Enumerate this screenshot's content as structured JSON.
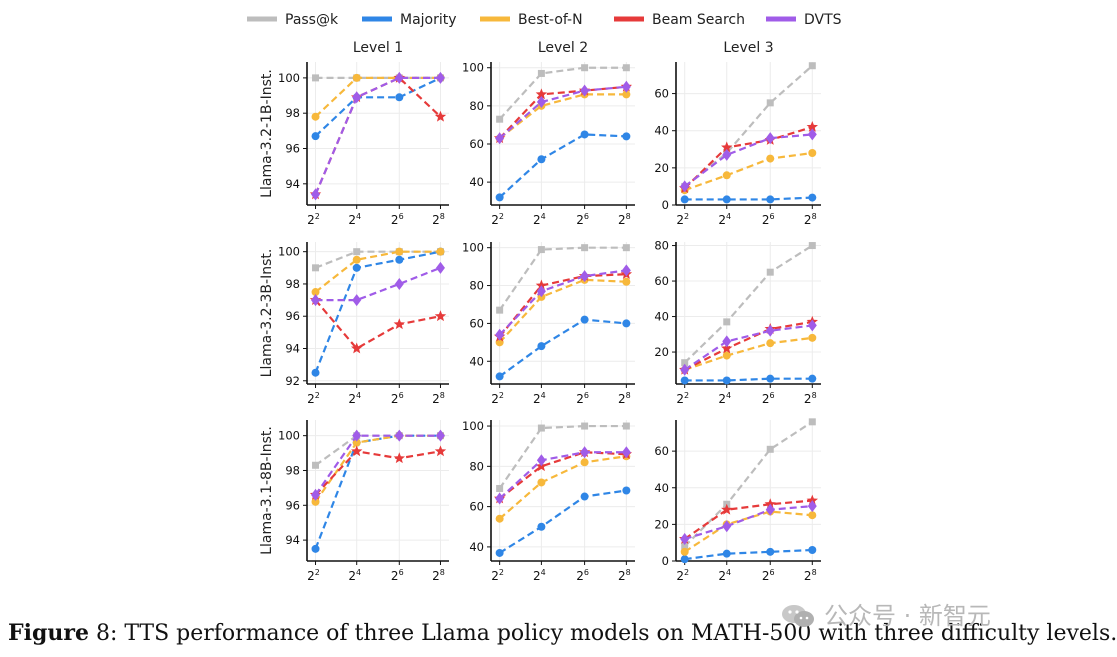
{
  "colors": {
    "Pass@k": "#bdbdbd",
    "Majority": "#2f86e6",
    "Best-of-N": "#f7b83b",
    "Beam Search": "#e63a3a",
    "DVTS": "#a05ce8"
  },
  "legend": [
    "Pass@k",
    "Majority",
    "Best-of-N",
    "Beam Search",
    "DVTS"
  ],
  "column_titles": [
    "Level 1",
    "Level 2",
    "Level 3"
  ],
  "row_labels": [
    "Llama-3.2-1B-Inst.",
    "Llama-3.2-3B-Inst.",
    "Llama-3.1-8B-Inst."
  ],
  "caption": {
    "bold": "Figure",
    "rest": " 8: TTS performance of three Llama policy models on MATH-500 with three difficulty levels."
  },
  "watermark": "公众号 · 新智元",
  "chart_data": [
    {
      "type": "line",
      "row": 0,
      "col": 0,
      "x": [
        "2^2",
        "2^4",
        "2^6",
        "2^8"
      ],
      "ylim": [
        92.8,
        100.9
      ],
      "yticks": [
        94,
        96,
        98,
        100
      ],
      "series": [
        {
          "name": "Pass@k",
          "values": [
            100,
            100,
            100,
            100
          ]
        },
        {
          "name": "Majority",
          "values": [
            96.7,
            98.9,
            98.9,
            100
          ]
        },
        {
          "name": "Best-of-N",
          "values": [
            97.8,
            100,
            100,
            100
          ]
        },
        {
          "name": "Beam Search",
          "values": [
            93.4,
            98.9,
            100,
            97.8
          ]
        },
        {
          "name": "DVTS",
          "values": [
            93.4,
            98.9,
            100,
            100
          ]
        }
      ]
    },
    {
      "type": "line",
      "row": 0,
      "col": 1,
      "x": [
        "2^2",
        "2^4",
        "2^6",
        "2^8"
      ],
      "ylim": [
        28,
        103
      ],
      "yticks": [
        40,
        60,
        80,
        100
      ],
      "series": [
        {
          "name": "Pass@k",
          "values": [
            73,
            97,
            100,
            100
          ]
        },
        {
          "name": "Majority",
          "values": [
            32,
            52,
            65,
            64
          ]
        },
        {
          "name": "Best-of-N",
          "values": [
            63,
            80,
            86,
            86
          ]
        },
        {
          "name": "Beam Search",
          "values": [
            63,
            86,
            88,
            90
          ]
        },
        {
          "name": "DVTS",
          "values": [
            63,
            82,
            88,
            90
          ]
        }
      ]
    },
    {
      "type": "line",
      "row": 0,
      "col": 2,
      "x": [
        "2^2",
        "2^4",
        "2^6",
        "2^8"
      ],
      "ylim": [
        0,
        77
      ],
      "yticks": [
        0,
        20,
        40,
        60
      ],
      "series": [
        {
          "name": "Pass@k",
          "values": [
            10,
            28,
            55,
            75
          ]
        },
        {
          "name": "Majority",
          "values": [
            3,
            3,
            3,
            4
          ]
        },
        {
          "name": "Best-of-N",
          "values": [
            8,
            16,
            25,
            28
          ]
        },
        {
          "name": "Beam Search",
          "values": [
            9,
            31,
            35,
            42
          ]
        },
        {
          "name": "DVTS",
          "values": [
            10,
            27,
            36,
            38
          ]
        }
      ]
    },
    {
      "type": "line",
      "row": 1,
      "col": 0,
      "x": [
        "2^2",
        "2^4",
        "2^6",
        "2^8"
      ],
      "ylim": [
        91.8,
        100.6
      ],
      "yticks": [
        92,
        94,
        96,
        98,
        100
      ],
      "series": [
        {
          "name": "Pass@k",
          "values": [
            99,
            100,
            100,
            100
          ]
        },
        {
          "name": "Majority",
          "values": [
            92.5,
            99,
            99.5,
            100
          ]
        },
        {
          "name": "Best-of-N",
          "values": [
            97.5,
            99.5,
            100,
            100
          ]
        },
        {
          "name": "Beam Search",
          "values": [
            97,
            94,
            95.5,
            96
          ]
        },
        {
          "name": "DVTS",
          "values": [
            97,
            97,
            98,
            99
          ]
        }
      ]
    },
    {
      "type": "line",
      "row": 1,
      "col": 1,
      "x": [
        "2^2",
        "2^4",
        "2^6",
        "2^8"
      ],
      "ylim": [
        28,
        103
      ],
      "yticks": [
        40,
        60,
        80,
        100
      ],
      "series": [
        {
          "name": "Pass@k",
          "values": [
            67,
            99,
            100,
            100
          ]
        },
        {
          "name": "Majority",
          "values": [
            32,
            48,
            62,
            60
          ]
        },
        {
          "name": "Best-of-N",
          "values": [
            50,
            74,
            83,
            82
          ]
        },
        {
          "name": "Beam Search",
          "values": [
            53,
            80,
            85,
            86
          ]
        },
        {
          "name": "DVTS",
          "values": [
            54,
            77,
            85,
            88
          ]
        }
      ]
    },
    {
      "type": "line",
      "row": 1,
      "col": 2,
      "x": [
        "2^2",
        "2^4",
        "2^6",
        "2^8"
      ],
      "ylim": [
        2,
        82
      ],
      "yticks": [
        20,
        40,
        60,
        80
      ],
      "series": [
        {
          "name": "Pass@k",
          "values": [
            14,
            37,
            65,
            80
          ]
        },
        {
          "name": "Majority",
          "values": [
            4,
            4,
            5,
            5
          ]
        },
        {
          "name": "Best-of-N",
          "values": [
            10,
            18,
            25,
            28
          ]
        },
        {
          "name": "Beam Search",
          "values": [
            10,
            22,
            33,
            37
          ]
        },
        {
          "name": "DVTS",
          "values": [
            10,
            26,
            32,
            35
          ]
        }
      ]
    },
    {
      "type": "line",
      "row": 2,
      "col": 0,
      "x": [
        "2^2",
        "2^4",
        "2^6",
        "2^8"
      ],
      "ylim": [
        92.8,
        100.9
      ],
      "yticks": [
        94,
        96,
        98,
        100
      ],
      "series": [
        {
          "name": "Pass@k",
          "values": [
            98.3,
            100,
            100,
            100
          ]
        },
        {
          "name": "Majority",
          "values": [
            93.5,
            99.6,
            100,
            100
          ]
        },
        {
          "name": "Best-of-N",
          "values": [
            96.2,
            99.6,
            100,
            100
          ]
        },
        {
          "name": "Beam Search",
          "values": [
            96.6,
            99.1,
            98.7,
            99.1
          ]
        },
        {
          "name": "DVTS",
          "values": [
            96.6,
            100,
            100,
            100
          ]
        }
      ]
    },
    {
      "type": "line",
      "row": 2,
      "col": 1,
      "x": [
        "2^2",
        "2^4",
        "2^6",
        "2^8"
      ],
      "ylim": [
        33,
        103
      ],
      "yticks": [
        40,
        60,
        80,
        100
      ],
      "series": [
        {
          "name": "Pass@k",
          "values": [
            69,
            99,
            100,
            100
          ]
        },
        {
          "name": "Majority",
          "values": [
            37,
            50,
            65,
            68
          ]
        },
        {
          "name": "Best-of-N",
          "values": [
            54,
            72,
            82,
            85
          ]
        },
        {
          "name": "Beam Search",
          "values": [
            64,
            80,
            87,
            86
          ]
        },
        {
          "name": "DVTS",
          "values": [
            64,
            83,
            87,
            87
          ]
        }
      ]
    },
    {
      "type": "line",
      "row": 2,
      "col": 2,
      "x": [
        "2^2",
        "2^4",
        "2^6",
        "2^8"
      ],
      "ylim": [
        0,
        77
      ],
      "yticks": [
        0,
        20,
        40,
        60
      ],
      "series": [
        {
          "name": "Pass@k",
          "values": [
            8,
            31,
            61,
            76
          ]
        },
        {
          "name": "Majority",
          "values": [
            1,
            4,
            5,
            6
          ]
        },
        {
          "name": "Best-of-N",
          "values": [
            5,
            20,
            27,
            25
          ]
        },
        {
          "name": "Beam Search",
          "values": [
            12,
            28,
            31,
            33
          ]
        },
        {
          "name": "DVTS",
          "values": [
            12,
            19,
            28,
            30
          ]
        }
      ]
    }
  ]
}
